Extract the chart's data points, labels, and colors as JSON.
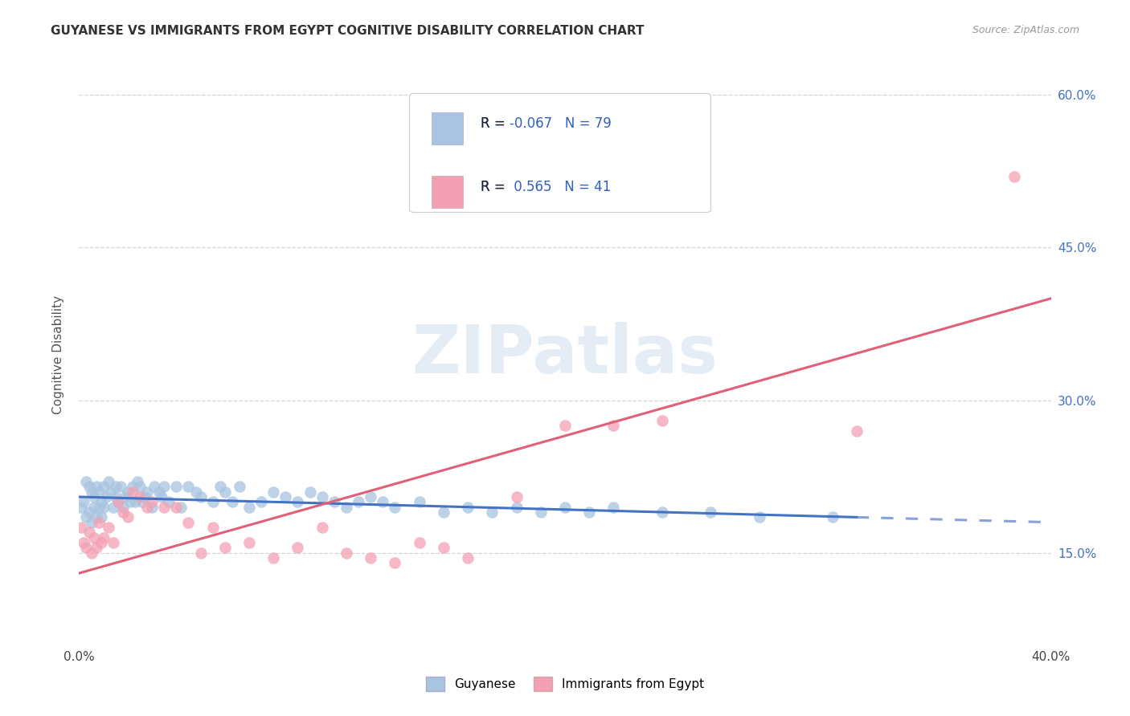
{
  "title": "GUYANESE VS IMMIGRANTS FROM EGYPT COGNITIVE DISABILITY CORRELATION CHART",
  "source": "Source: ZipAtlas.com",
  "ylabel": "Cognitive Disability",
  "legend_label_1": "Guyanese",
  "legend_label_2": "Immigrants from Egypt",
  "guyanese_R": -0.067,
  "guyanese_N": 79,
  "egypt_R": 0.565,
  "egypt_N": 41,
  "guyanese_color": "#a8c4e0",
  "egypt_color": "#f4a0b4",
  "trendline_blue": "#4472c4",
  "trendline_pink": "#e0607a",
  "xlim": [
    0.0,
    0.4
  ],
  "ylim": [
    0.06,
    0.63
  ],
  "ytick_vals": [
    0.15,
    0.3,
    0.45,
    0.6
  ],
  "ytick_labels": [
    "15.0%",
    "30.0%",
    "45.0%",
    "60.0%"
  ],
  "xtick_vals": [
    0.0,
    0.05,
    0.1,
    0.15,
    0.2,
    0.25,
    0.3,
    0.35,
    0.4
  ],
  "guyanese_trendline_solid_end": 0.32,
  "egypt_trendline_y0": 0.13,
  "egypt_trendline_y1": 0.4,
  "guyanese_trendline_y0": 0.205,
  "guyanese_trendline_y1": 0.185,
  "guyanese_x": [
    0.001,
    0.002,
    0.003,
    0.003,
    0.004,
    0.004,
    0.005,
    0.005,
    0.006,
    0.006,
    0.007,
    0.007,
    0.008,
    0.008,
    0.009,
    0.009,
    0.01,
    0.01,
    0.011,
    0.012,
    0.013,
    0.014,
    0.015,
    0.015,
    0.016,
    0.017,
    0.018,
    0.019,
    0.02,
    0.021,
    0.022,
    0.023,
    0.024,
    0.025,
    0.026,
    0.027,
    0.028,
    0.03,
    0.031,
    0.033,
    0.034,
    0.035,
    0.037,
    0.04,
    0.042,
    0.045,
    0.048,
    0.05,
    0.055,
    0.058,
    0.06,
    0.063,
    0.066,
    0.07,
    0.075,
    0.08,
    0.085,
    0.09,
    0.095,
    0.1,
    0.105,
    0.11,
    0.115,
    0.12,
    0.125,
    0.13,
    0.14,
    0.15,
    0.16,
    0.17,
    0.18,
    0.19,
    0.2,
    0.21,
    0.22,
    0.24,
    0.26,
    0.28,
    0.31
  ],
  "guyanese_y": [
    0.195,
    0.2,
    0.22,
    0.185,
    0.215,
    0.19,
    0.21,
    0.18,
    0.205,
    0.195,
    0.215,
    0.185,
    0.21,
    0.195,
    0.2,
    0.185,
    0.215,
    0.195,
    0.205,
    0.22,
    0.21,
    0.195,
    0.215,
    0.205,
    0.2,
    0.215,
    0.195,
    0.205,
    0.21,
    0.2,
    0.215,
    0.2,
    0.22,
    0.215,
    0.2,
    0.205,
    0.21,
    0.195,
    0.215,
    0.21,
    0.205,
    0.215,
    0.2,
    0.215,
    0.195,
    0.215,
    0.21,
    0.205,
    0.2,
    0.215,
    0.21,
    0.2,
    0.215,
    0.195,
    0.2,
    0.21,
    0.205,
    0.2,
    0.21,
    0.205,
    0.2,
    0.195,
    0.2,
    0.205,
    0.2,
    0.195,
    0.2,
    0.19,
    0.195,
    0.19,
    0.195,
    0.19,
    0.195,
    0.19,
    0.195,
    0.19,
    0.19,
    0.185,
    0.185
  ],
  "egypt_x": [
    0.001,
    0.002,
    0.003,
    0.004,
    0.005,
    0.006,
    0.007,
    0.008,
    0.009,
    0.01,
    0.012,
    0.014,
    0.016,
    0.018,
    0.02,
    0.022,
    0.025,
    0.028,
    0.03,
    0.035,
    0.04,
    0.045,
    0.05,
    0.055,
    0.06,
    0.07,
    0.08,
    0.09,
    0.1,
    0.11,
    0.12,
    0.13,
    0.14,
    0.15,
    0.16,
    0.18,
    0.2,
    0.22,
    0.24,
    0.32,
    0.385
  ],
  "egypt_y": [
    0.175,
    0.16,
    0.155,
    0.17,
    0.15,
    0.165,
    0.155,
    0.18,
    0.16,
    0.165,
    0.175,
    0.16,
    0.2,
    0.19,
    0.185,
    0.21,
    0.205,
    0.195,
    0.2,
    0.195,
    0.195,
    0.18,
    0.15,
    0.175,
    0.155,
    0.16,
    0.145,
    0.155,
    0.175,
    0.15,
    0.145,
    0.14,
    0.16,
    0.155,
    0.145,
    0.205,
    0.275,
    0.275,
    0.28,
    0.27,
    0.52
  ],
  "watermark_text": "ZIPatlas",
  "watermark_color": "#c5d8ea",
  "watermark_alpha": 0.45
}
